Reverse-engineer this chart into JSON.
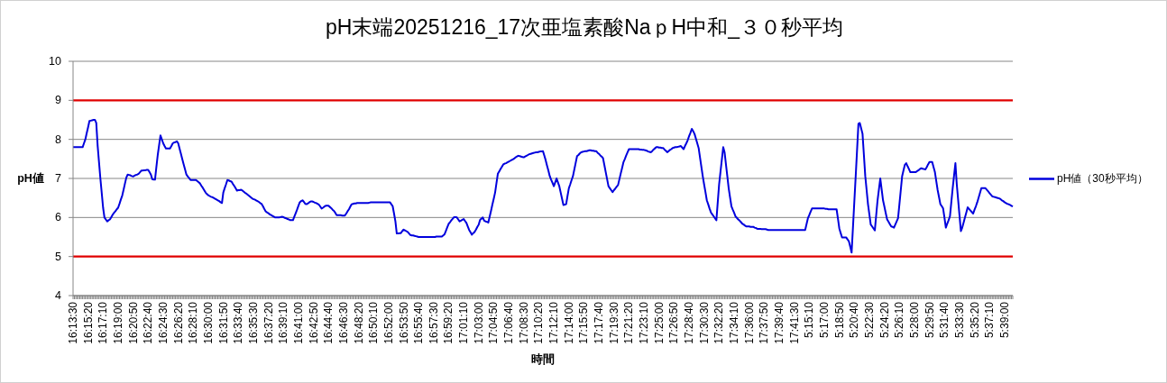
{
  "chart_data": {
    "type": "line",
    "title": "pH末端20251216_17次亜塩素酸NaｐH中和_３０秒平均",
    "xlabel": "時間",
    "ylabel": "pH値",
    "categories": [
      "16:13:30",
      null,
      null,
      null,
      null,
      null,
      null,
      null,
      null,
      null,
      null,
      "16:15:20",
      null,
      null,
      null,
      null,
      null,
      null,
      null,
      null,
      null,
      null,
      "16:17:10",
      null,
      null,
      null,
      null,
      null,
      null,
      null,
      null,
      null,
      null,
      "16:19:00",
      null,
      null,
      null,
      null,
      null,
      null,
      null,
      null,
      null,
      null,
      "16:20:50",
      null,
      null,
      null,
      null,
      null,
      null,
      null,
      null,
      null,
      null,
      "16:22:40",
      null,
      null,
      null,
      null,
      null,
      null,
      null,
      null,
      null,
      null,
      "16:24:30",
      null,
      null,
      null,
      null,
      null,
      null,
      null,
      null,
      null,
      null,
      "16:26:20",
      null,
      null,
      null,
      null,
      null,
      null,
      null,
      null,
      null,
      null,
      "16:28:10",
      null,
      null,
      null,
      null,
      null,
      null,
      null,
      null,
      null,
      null,
      "16:30:00",
      null,
      null,
      null,
      null,
      null,
      null,
      null,
      null,
      null,
      null,
      "16:31:50",
      null,
      null,
      null,
      null,
      null,
      null,
      null,
      null,
      null,
      null,
      "16:33:40",
      null,
      null,
      null,
      null,
      null,
      null,
      null,
      null,
      null,
      null,
      "16:35:30",
      null,
      null,
      null,
      null,
      null,
      null,
      null,
      null,
      null,
      null,
      "16:37:20",
      null,
      null,
      null,
      null,
      null,
      null,
      null,
      null,
      null,
      null,
      "16:39:10",
      null,
      null,
      null,
      null,
      null,
      null,
      null,
      null,
      null,
      null,
      "16:41:00",
      null,
      null,
      null,
      null,
      null,
      null,
      null,
      null,
      null,
      null,
      "16:42:50",
      null,
      null,
      null,
      null,
      null,
      null,
      null,
      null,
      null,
      null,
      "16:44:40",
      null,
      null,
      null,
      null,
      null,
      null,
      null,
      null,
      null,
      null,
      "16:46:30",
      null,
      null,
      null,
      null,
      null,
      null,
      null,
      null,
      null,
      null,
      "16:48:20",
      null,
      null,
      null,
      null,
      null,
      null,
      null,
      null,
      null,
      null,
      "16:50:10",
      null,
      null,
      null,
      null,
      null,
      null,
      null,
      null,
      null,
      null,
      "16:52:00",
      null,
      null,
      null,
      null,
      null,
      null,
      null,
      null,
      null,
      null,
      "16:53:50",
      null,
      null,
      null,
      null,
      null,
      null,
      null,
      null,
      null,
      null,
      "16:55:40",
      null,
      null,
      null,
      null,
      null,
      null,
      null,
      null,
      null,
      null,
      "16:57:30",
      null,
      null,
      null,
      null,
      null,
      null,
      null,
      null,
      null,
      null,
      "16:59:20",
      null,
      null,
      null,
      null,
      null,
      null,
      null,
      null,
      null,
      null,
      "17:01:10",
      null,
      null,
      null,
      null,
      null,
      null,
      null,
      null,
      null,
      null,
      "17:03:00",
      null,
      null,
      null,
      null,
      null,
      null,
      null,
      null,
      null,
      null,
      "17:04:50",
      null,
      null,
      null,
      null,
      null,
      null,
      null,
      null,
      null,
      null,
      "17:06:40",
      null,
      null,
      null,
      null,
      null,
      null,
      null,
      null,
      null,
      null,
      "17:08:30",
      null,
      null,
      null,
      null,
      null,
      null,
      null,
      null,
      null,
      null,
      "17:10:20",
      null,
      null,
      null,
      null,
      null,
      null,
      null,
      null,
      null,
      null,
      "17:12:10",
      null,
      null,
      null,
      null,
      null,
      null,
      null,
      null,
      null,
      null,
      "17:14:00",
      null,
      null,
      null,
      null,
      null,
      null,
      null,
      null,
      null,
      null,
      "17:15:50",
      null,
      null,
      null,
      null,
      null,
      null,
      null,
      null,
      null,
      null,
      "17:17:40",
      null,
      null,
      null,
      null,
      null,
      null,
      null,
      null,
      null,
      null,
      "17:19:30",
      null,
      null,
      null,
      null,
      null,
      null,
      null,
      null,
      null,
      null,
      "17:21:20",
      null,
      null,
      null,
      null,
      null,
      null,
      null,
      null,
      null,
      null,
      "17:23:10",
      null,
      null,
      null,
      null,
      null,
      null,
      null,
      null,
      null,
      null,
      "17:25:00",
      null,
      null,
      null,
      null,
      null,
      null,
      null,
      null,
      null,
      null,
      "17:26:50",
      null,
      null,
      null,
      null,
      null,
      null,
      null,
      null,
      null,
      null,
      "17:28:40",
      null,
      null,
      null,
      null,
      null,
      null,
      null,
      null,
      null,
      null,
      "17:30:30",
      null,
      null,
      null,
      null,
      null,
      null,
      null,
      null,
      null,
      null,
      "17:32:20",
      null,
      null,
      null,
      null,
      null,
      null,
      null,
      null,
      null,
      null,
      "17:34:10",
      null,
      null,
      null,
      null,
      null,
      null,
      null,
      null,
      null,
      null,
      "17:36:00",
      null,
      null,
      null,
      null,
      null,
      null,
      null,
      null,
      null,
      null,
      "17:37:50",
      null,
      null,
      null,
      null,
      null,
      null,
      null,
      null,
      null,
      null,
      "17:39:40",
      null,
      null,
      null,
      null,
      null,
      null,
      null,
      null,
      null,
      null,
      "17:41:30",
      null,
      null,
      null,
      null,
      null,
      null,
      null,
      null,
      null,
      null,
      "5:15:10",
      null,
      null,
      null,
      null,
      null,
      null,
      null,
      null,
      null,
      null,
      "5:17:00",
      null,
      null,
      null,
      null,
      null,
      null,
      null,
      null,
      null,
      null,
      "5:18:50",
      null,
      null,
      null,
      null,
      null,
      null,
      null,
      null,
      null,
      null,
      "5:20:40",
      null,
      null,
      null,
      null,
      null,
      null,
      null,
      null,
      null,
      null,
      "5:22:30",
      null,
      null,
      null,
      null,
      null,
      null,
      null,
      null,
      null,
      null,
      "5:24:20",
      null,
      null,
      null,
      null,
      null,
      null,
      null,
      null,
      null,
      null,
      "5:26:10",
      null,
      null,
      null,
      null,
      null,
      null,
      null,
      null,
      null,
      null,
      "5:28:00",
      null,
      null,
      null,
      null,
      null,
      null,
      null,
      null,
      null,
      null,
      "5:29:50",
      null,
      null,
      null,
      null,
      null,
      null,
      null,
      null,
      null,
      null,
      "5:31:40",
      null,
      null,
      null,
      null,
      null,
      null,
      null,
      null,
      null,
      null,
      "5:33:30",
      null,
      null,
      null,
      null,
      null,
      null,
      null,
      null,
      null,
      null,
      "5:35:20",
      null,
      null,
      null,
      null,
      null,
      null,
      null,
      null,
      null,
      null,
      "5:37:10",
      null,
      null,
      null,
      null,
      null,
      null,
      null,
      null,
      null,
      null,
      "5:39:00",
      null,
      null,
      null,
      null,
      null,
      null
    ],
    "ylim": [
      4,
      10
    ],
    "yticks": [
      4,
      5,
      6,
      7,
      8,
      9,
      10
    ],
    "grid": "y",
    "legend": "right",
    "marker": "none",
    "ref_lines": [
      {
        "axis": "y",
        "value": 9,
        "color": "#e00000"
      },
      {
        "axis": "y",
        "value": 5,
        "color": "#e00000"
      }
    ],
    "series": [
      {
        "name": "pH値（30秒平均）",
        "color": "#0000dd",
        "values": [
          7.8,
          7.8,
          7.8,
          7.8,
          7.8,
          7.8,
          7.8,
          7.8,
          7.9,
          8.0,
          8.16,
          8.31,
          8.47,
          8.48,
          8.49,
          8.5,
          8.5,
          8.42,
          7.84,
          7.42,
          7.0,
          6.63,
          6.25,
          6.0,
          5.95,
          5.9,
          5.93,
          5.95,
          6.01,
          6.07,
          6.12,
          6.16,
          6.21,
          6.25,
          6.35,
          6.46,
          6.56,
          6.71,
          6.87,
          7.02,
          7.1,
          7.09,
          7.08,
          7.06,
          7.05,
          7.07,
          7.09,
          7.1,
          7.12,
          7.16,
          7.2,
          7.2,
          7.21,
          7.21,
          7.22,
          7.22,
          7.16,
          7.1,
          6.98,
          6.97,
          6.97,
          7.29,
          7.6,
          7.85,
          8.1,
          8.0,
          7.9,
          7.83,
          7.77,
          7.77,
          7.77,
          7.77,
          7.83,
          7.9,
          7.92,
          7.93,
          7.95,
          7.9,
          7.76,
          7.63,
          7.49,
          7.36,
          7.23,
          7.1,
          7.05,
          7.01,
          6.96,
          6.96,
          6.96,
          6.96,
          6.96,
          6.93,
          6.9,
          6.87,
          6.81,
          6.76,
          6.7,
          6.64,
          6.6,
          6.57,
          6.55,
          6.53,
          6.52,
          6.5,
          6.48,
          6.46,
          6.44,
          6.42,
          6.39,
          6.37,
          6.64,
          6.75,
          6.85,
          6.96,
          6.95,
          6.93,
          6.92,
          6.86,
          6.81,
          6.75,
          6.69,
          6.7,
          6.7,
          6.71,
          6.69,
          6.66,
          6.63,
          6.61,
          6.58,
          6.55,
          6.52,
          6.49,
          6.47,
          6.46,
          6.44,
          6.42,
          6.4,
          6.37,
          6.35,
          6.29,
          6.22,
          6.16,
          6.13,
          6.11,
          6.08,
          6.06,
          6.04,
          6.02,
          6.0,
          6.0,
          6.0,
          6.0,
          6.01,
          6.02,
          6.01,
          5.99,
          5.98,
          5.96,
          5.95,
          5.93,
          5.93,
          5.93,
          6.02,
          6.11,
          6.2,
          6.3,
          6.39,
          6.42,
          6.44,
          6.4,
          6.35,
          6.34,
          6.36,
          6.39,
          6.41,
          6.41,
          6.4,
          6.38,
          6.37,
          6.35,
          6.33,
          6.28,
          6.23,
          6.25,
          6.28,
          6.3,
          6.3,
          6.3,
          6.27,
          6.24,
          6.2,
          6.17,
          6.12,
          6.06,
          6.06,
          6.06,
          6.06,
          6.05,
          6.05,
          6.05,
          6.1,
          6.16,
          6.21,
          6.28,
          6.34,
          6.35,
          6.36,
          6.36,
          6.37,
          6.37,
          6.37,
          6.37,
          6.37,
          6.37,
          6.37,
          6.37,
          6.37,
          6.38,
          6.39,
          6.39,
          6.39,
          6.39,
          6.39,
          6.39,
          6.39,
          6.39,
          6.39,
          6.39,
          6.39,
          6.39,
          6.39,
          6.39,
          6.39,
          6.34,
          6.29,
          6.1,
          5.9,
          5.59,
          5.59,
          5.6,
          5.6,
          5.65,
          5.69,
          5.67,
          5.65,
          5.63,
          5.59,
          5.55,
          5.54,
          5.54,
          5.53,
          5.52,
          5.51,
          5.5,
          5.5,
          5.5,
          5.5,
          5.5,
          5.5,
          5.5,
          5.5,
          5.5,
          5.5,
          5.5,
          5.5,
          5.5,
          5.51,
          5.51,
          5.51,
          5.51,
          5.51,
          5.54,
          5.57,
          5.66,
          5.75,
          5.84,
          5.88,
          5.93,
          5.97,
          6.01,
          6.01,
          6.0,
          5.95,
          5.9,
          5.92,
          5.94,
          5.96,
          5.91,
          5.86,
          5.77,
          5.68,
          5.62,
          5.56,
          5.6,
          5.63,
          5.69,
          5.76,
          5.82,
          5.94,
          5.97,
          6.0,
          5.92,
          5.9,
          5.89,
          5.87,
          6.02,
          6.17,
          6.33,
          6.48,
          6.64,
          6.88,
          7.12,
          7.18,
          7.24,
          7.3,
          7.36,
          7.38,
          7.39,
          7.41,
          7.43,
          7.45,
          7.47,
          7.49,
          7.51,
          7.54,
          7.56,
          7.58,
          7.57,
          7.56,
          7.55,
          7.54,
          7.56,
          7.58,
          7.6,
          7.62,
          7.63,
          7.64,
          7.65,
          7.66,
          7.67,
          7.67,
          7.68,
          7.69,
          7.69,
          7.7,
          7.59,
          7.47,
          7.33,
          7.2,
          7.06,
          6.97,
          6.89,
          6.8,
          6.9,
          7.0,
          6.9,
          6.8,
          6.64,
          6.48,
          6.32,
          6.33,
          6.34,
          6.55,
          6.75,
          6.85,
          6.96,
          7.06,
          7.23,
          7.4,
          7.57,
          7.6,
          7.64,
          7.67,
          7.68,
          7.69,
          7.7,
          7.7,
          7.71,
          7.72,
          7.72,
          7.71,
          7.71,
          7.7,
          7.7,
          7.66,
          7.63,
          7.59,
          7.56,
          7.52,
          7.34,
          7.16,
          6.98,
          6.8,
          6.75,
          6.7,
          6.65,
          6.7,
          6.74,
          6.79,
          6.83,
          6.98,
          7.13,
          7.27,
          7.42,
          7.5,
          7.59,
          7.67,
          7.75,
          7.75,
          7.75,
          7.75,
          7.75,
          7.75,
          7.75,
          7.75,
          7.74,
          7.74,
          7.73,
          7.73,
          7.72,
          7.71,
          7.69,
          7.68,
          7.67,
          7.7,
          7.74,
          7.77,
          7.8,
          7.8,
          7.79,
          7.79,
          7.78,
          7.78,
          7.74,
          7.71,
          7.67,
          7.7,
          7.73,
          7.75,
          7.78,
          7.79,
          7.8,
          7.8,
          7.81,
          7.82,
          7.83,
          7.79,
          7.75,
          7.83,
          7.9,
          7.98,
          8.08,
          8.17,
          8.27,
          8.21,
          8.14,
          8.02,
          7.9,
          7.78,
          7.54,
          7.3,
          7.06,
          6.85,
          6.65,
          6.44,
          6.34,
          6.23,
          6.13,
          6.08,
          6.03,
          5.98,
          5.93,
          6.39,
          6.85,
          7.17,
          7.48,
          7.8,
          7.67,
          7.36,
          7.06,
          6.75,
          6.52,
          6.29,
          6.2,
          6.12,
          6.03,
          5.99,
          5.95,
          5.92,
          5.88,
          5.84,
          5.82,
          5.79,
          5.77,
          5.77,
          5.77,
          5.76,
          5.76,
          5.76,
          5.74,
          5.73,
          5.71,
          5.71,
          5.71,
          5.7,
          5.7,
          5.7,
          5.7,
          5.69,
          5.68,
          5.68,
          5.68,
          5.68,
          5.68,
          5.68,
          5.68,
          5.68,
          5.68,
          5.68,
          5.68,
          5.68,
          5.68,
          5.68,
          5.68,
          5.68,
          5.68,
          5.68,
          5.68,
          5.68,
          5.68,
          5.68,
          5.68,
          5.68,
          5.68,
          5.68,
          5.68,
          5.68,
          5.83,
          5.98,
          6.06,
          6.15,
          6.23,
          6.23,
          6.23,
          6.23,
          6.23,
          6.23,
          6.23,
          6.23,
          6.23,
          6.23,
          6.22,
          6.22,
          6.21,
          6.21,
          6.21,
          6.21,
          6.21,
          6.21,
          6.21,
          5.97,
          5.72,
          5.6,
          5.49,
          5.49,
          5.49,
          5.49,
          5.44,
          5.39,
          5.25,
          5.1,
          5.75,
          6.41,
          7.06,
          7.73,
          8.4,
          8.42,
          8.28,
          8.14,
          7.6,
          7.06,
          6.7,
          6.34,
          6.08,
          5.82,
          5.77,
          5.72,
          5.67,
          6.06,
          6.44,
          6.72,
          7.0,
          6.72,
          6.44,
          6.28,
          6.11,
          5.95,
          5.89,
          5.83,
          5.77,
          5.76,
          5.74,
          5.82,
          5.9,
          5.98,
          6.34,
          6.7,
          7.06,
          7.21,
          7.35,
          7.39,
          7.31,
          7.24,
          7.16,
          7.16,
          7.16,
          7.16,
          7.16,
          7.19,
          7.21,
          7.24,
          7.26,
          7.25,
          7.24,
          7.23,
          7.29,
          7.36,
          7.42,
          7.42,
          7.42,
          7.29,
          7.16,
          6.93,
          6.7,
          6.52,
          6.34,
          6.29,
          6.23,
          5.99,
          5.74,
          5.84,
          5.93,
          6.03,
          6.39,
          6.75,
          7.07,
          7.39,
          6.85,
          6.45,
          6.05,
          5.65,
          5.74,
          5.87,
          6.0,
          6.13,
          6.26,
          6.22,
          6.18,
          6.14,
          6.1,
          6.2,
          6.29,
          6.39,
          6.51,
          6.63,
          6.75,
          6.75,
          6.75,
          6.75,
          6.71,
          6.67,
          6.62,
          6.58,
          6.54,
          6.53,
          6.52,
          6.51,
          6.5,
          6.49,
          6.47,
          6.44,
          6.42,
          6.39,
          6.37,
          6.35,
          6.34,
          6.32,
          6.3,
          6.28
        ]
      }
    ]
  }
}
